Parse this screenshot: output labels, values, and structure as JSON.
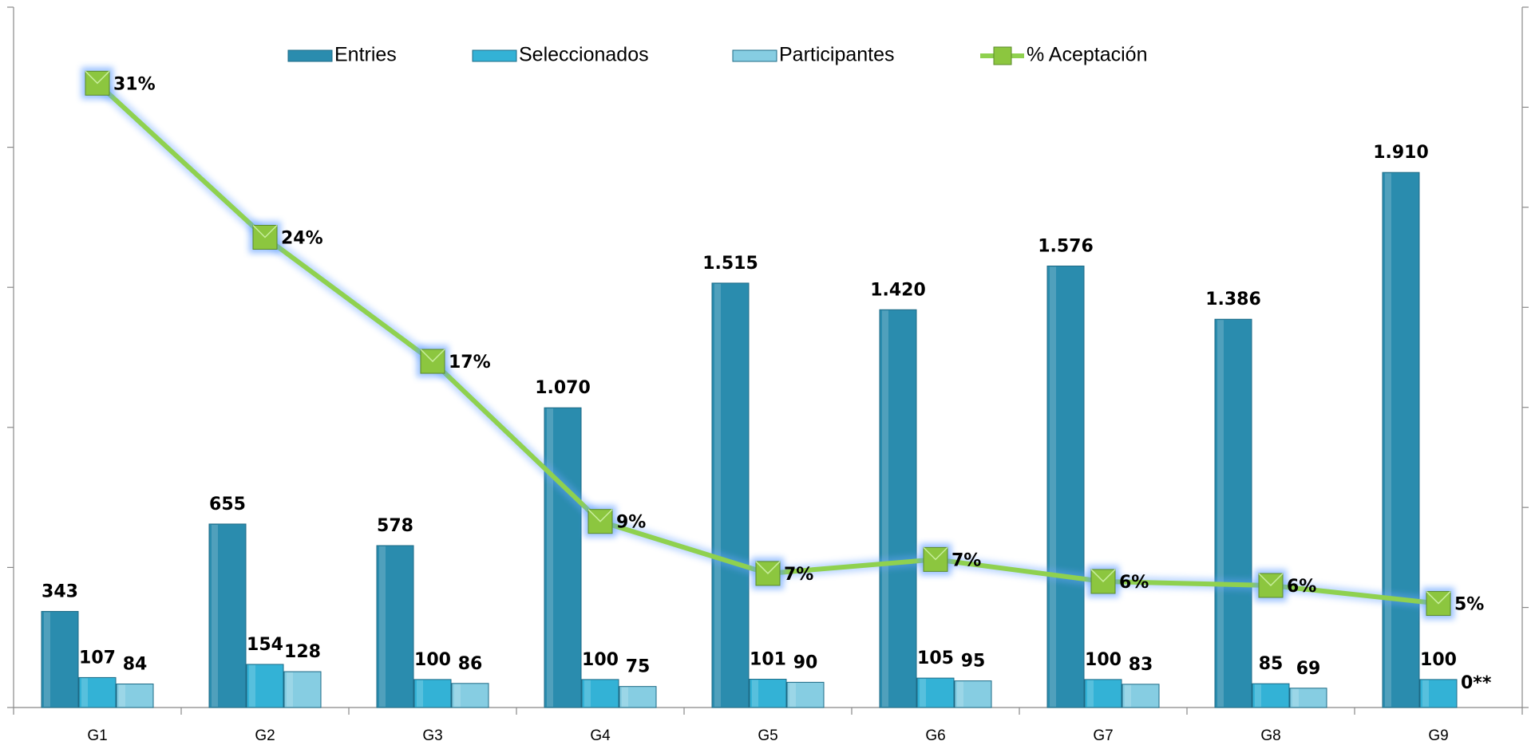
{
  "chart_data": {
    "type": "bar",
    "categories": [
      "G1",
      "G2",
      "G3",
      "G4",
      "G5",
      "G6",
      "G7",
      "G8",
      "G9"
    ],
    "series": [
      {
        "name": "Entries",
        "color": "#2a8cae",
        "values": [
          343,
          655,
          578,
          1070,
          1515,
          1420,
          1576,
          1386,
          1910
        ],
        "value_labels": [
          "343",
          "655",
          "578",
          "1.070",
          "1.515",
          "1.420",
          "1.576",
          "1.386",
          "1.910"
        ]
      },
      {
        "name": "Seleccionados",
        "color": "#33b2d6",
        "values": [
          107,
          154,
          100,
          100,
          101,
          105,
          100,
          85,
          100
        ]
      },
      {
        "name": "Participantes",
        "color": "#86cde2",
        "values": [
          84,
          128,
          86,
          75,
          90,
          95,
          83,
          69,
          0
        ],
        "value_labels": [
          "84",
          "128",
          "86",
          "75",
          "90",
          "95",
          "83",
          "69",
          "0**"
        ]
      },
      {
        "name": "% Aceptación",
        "type": "line",
        "axis": "y2",
        "color": "#8fd14f",
        "marker_color": "#8cc63f",
        "values": [
          31.2,
          23.5,
          17.3,
          9.3,
          6.7,
          7.4,
          6.3,
          6.1,
          5.2
        ],
        "value_labels": [
          "31%",
          "24%",
          "17%",
          "9%",
          "7%",
          "7%",
          "6%",
          "6%",
          "5%"
        ]
      }
    ],
    "ylim": [
      0,
      2500
    ],
    "yticks": [
      0,
      500,
      1000,
      1500,
      2000,
      2500
    ],
    "y2lim": [
      0,
      35
    ],
    "y2ticks": [
      0,
      5,
      10,
      15,
      20,
      25,
      30,
      35
    ],
    "legend": "top"
  }
}
